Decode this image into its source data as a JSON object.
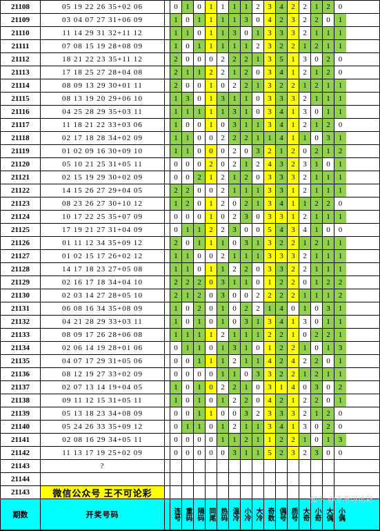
{
  "footer": {
    "period": "期数",
    "draw": "开奖号码",
    "cols": [
      "连号",
      "重码",
      "隔码",
      "同尾",
      "热码",
      "温冷",
      "小冷",
      "大冷",
      "奇数",
      "偶号",
      "质号",
      "大奇",
      "小奇",
      "大偶",
      "小偶"
    ]
  },
  "wx": "微信公众号 王不可论彩",
  "watermark": "知乎 @王不可论彩",
  "colors": {
    "y": "#ffff00",
    "g": "#92d050",
    "c": "#00ffff"
  },
  "rows": [
    {
      "id": "21108",
      "n": "05 19 22 26 35+02 06",
      "v": [
        "0",
        "1",
        "0",
        "1",
        "1",
        "1",
        "1",
        "2",
        "3",
        "4",
        "2",
        "2",
        "1",
        "2",
        "0"
      ],
      "c": [
        "",
        "g",
        "",
        "y",
        "",
        "g",
        "g",
        "",
        "y",
        "g",
        "y",
        "",
        "g",
        "g",
        ""
      ]
    },
    {
      "id": "21109",
      "n": "03 04 07 27 31+06 09",
      "v": [
        "1",
        "0",
        "1",
        "1",
        "1",
        "1",
        "3",
        "0",
        "4",
        "2",
        "3",
        "2",
        "2",
        "0",
        "1"
      ],
      "c": [
        "g",
        "",
        "g",
        "y",
        "g",
        "g",
        "g",
        "",
        "y",
        "g",
        "y",
        "",
        "g",
        "",
        "g"
      ]
    },
    {
      "id": "21110",
      "n": "11 14 29 31 32+11 12",
      "v": [
        "1",
        "1",
        "0",
        "1",
        "1",
        "3",
        "0",
        "1",
        "3",
        "3",
        "3",
        "2",
        "1",
        "1",
        "1"
      ],
      "c": [
        "g",
        "g",
        "",
        "y",
        "g",
        "g",
        "",
        "g",
        "y",
        "g",
        "y",
        "",
        "g",
        "g",
        "g"
      ]
    },
    {
      "id": "21111",
      "n": "07 08 15 19 28+08 09",
      "v": [
        "1",
        "0",
        "1",
        "1",
        "1",
        "1",
        "1",
        "2",
        "3",
        "2",
        "2",
        "1",
        "2",
        "1",
        "1"
      ],
      "c": [
        "g",
        "",
        "g",
        "y",
        "g",
        "g",
        "g",
        "",
        "y",
        "g",
        "y",
        "g",
        "g",
        "g",
        "g"
      ]
    },
    {
      "id": "21112",
      "n": "18 21 22 23 35+11 12",
      "v": [
        "2",
        "0",
        "0",
        "0",
        "2",
        "2",
        "2",
        "1",
        "3",
        "5",
        "1",
        "3",
        "0",
        "2",
        "0"
      ],
      "c": [
        "g",
        "",
        "",
        "",
        "",
        "g",
        "g",
        "g",
        "y",
        "g",
        "y",
        "",
        "",
        "g",
        ""
      ]
    },
    {
      "id": "21113",
      "n": "17 18 25 27 28+04 08",
      "v": [
        "2",
        "1",
        "1",
        "2",
        "2",
        "1",
        "2",
        "0",
        "3",
        "4",
        "1",
        "2",
        "1",
        "2",
        "0"
      ],
      "c": [
        "g",
        "g",
        "g",
        "y",
        "",
        "g",
        "g",
        "",
        "y",
        "g",
        "y",
        "",
        "g",
        "g",
        ""
      ]
    },
    {
      "id": "21114",
      "n": "08 09 13 29 30+01 11",
      "v": [
        "2",
        "0",
        "0",
        "1",
        "0",
        "2",
        "2",
        "1",
        "3",
        "2",
        "2",
        "1",
        "2",
        "1",
        "1"
      ],
      "c": [
        "g",
        "",
        "",
        "y",
        "",
        "",
        "g",
        "g",
        "y",
        "g",
        "y",
        "g",
        "g",
        "g",
        "g"
      ]
    },
    {
      "id": "21115",
      "n": "08 13 19 20 29+06 10",
      "v": [
        "1",
        "3",
        "0",
        "1",
        "3",
        "1",
        "1",
        "0",
        "3",
        "3",
        "3",
        "2",
        "1",
        "1",
        "1"
      ],
      "c": [
        "g",
        "g",
        "",
        "y",
        "g",
        "g",
        "g",
        "",
        "y",
        "g",
        "y",
        "",
        "g",
        "g",
        "g"
      ]
    },
    {
      "id": "21116",
      "n": "04 25 28 29 35+03 11",
      "v": [
        "1",
        "1",
        "1",
        "1",
        "1",
        "3",
        "1",
        "0",
        "3",
        "4",
        "1",
        "3",
        "0",
        "1",
        "1"
      ],
      "c": [
        "g",
        "g",
        "g",
        "y",
        "g",
        "g",
        "g",
        "",
        "y",
        "g",
        "y",
        "",
        "",
        "g",
        "g"
      ]
    },
    {
      "id": "21117",
      "n": "11 18 21 22 33+03 06",
      "v": [
        "1",
        "0",
        "0",
        "1",
        "0",
        "3",
        "1",
        "1",
        "3",
        "4",
        "1",
        "2",
        "1",
        "2",
        "0"
      ],
      "c": [
        "g",
        "",
        "",
        "y",
        "",
        "g",
        "g",
        "g",
        "y",
        "g",
        "y",
        "",
        "g",
        "g",
        ""
      ]
    },
    {
      "id": "21118",
      "n": "02 17 18 28 34+02 09",
      "v": [
        "1",
        "1",
        "0",
        "0",
        "2",
        "2",
        "2",
        "1",
        "1",
        "4",
        "1",
        "1",
        "0",
        "3",
        "1"
      ],
      "c": [
        "g",
        "g",
        "",
        "",
        "",
        "g",
        "g",
        "g",
        "g",
        "g",
        "y",
        "g",
        "",
        "g",
        "g"
      ]
    },
    {
      "id": "21119",
      "n": "01 02 09 16 30+09 10",
      "v": [
        "1",
        "1",
        "0",
        "0",
        "0",
        "2",
        "0",
        "3",
        "2",
        "1",
        "2",
        "0",
        "2",
        "1",
        "2"
      ],
      "c": [
        "g",
        "g",
        "",
        "y",
        "",
        "",
        "",
        "g",
        "y",
        "g",
        "y",
        "",
        "g",
        "g",
        "g"
      ]
    },
    {
      "id": "21120",
      "n": "05 10 21 25 31+05 11",
      "v": [
        "0",
        "0",
        "0",
        "2",
        "0",
        "2",
        "1",
        "2",
        "4",
        "3",
        "2",
        "3",
        "1",
        "0",
        "1"
      ],
      "c": [
        "",
        "",
        "",
        "y",
        "",
        "",
        "g",
        "",
        "y",
        "g",
        "y",
        "",
        "g",
        "",
        "g"
      ]
    },
    {
      "id": "21121",
      "n": "02 15 19 29 30+02 09",
      "v": [
        "0",
        "0",
        "2",
        "1",
        "2",
        "1",
        "2",
        "0",
        "3",
        "3",
        "3",
        "2",
        "1",
        "1",
        "1"
      ],
      "c": [
        "",
        "",
        "g",
        "y",
        "",
        "g",
        "g",
        "",
        "y",
        "g",
        "y",
        "",
        "g",
        "g",
        "g"
      ]
    },
    {
      "id": "21122",
      "n": "14 15 26 27 29+04 05",
      "v": [
        "2",
        "2",
        "0",
        "0",
        "2",
        "1",
        "1",
        "1",
        "3",
        "3",
        "1",
        "2",
        "1",
        "1",
        "1"
      ],
      "c": [
        "g",
        "g",
        "",
        "",
        "",
        "g",
        "g",
        "g",
        "y",
        "g",
        "y",
        "",
        "g",
        "g",
        "g"
      ]
    },
    {
      "id": "21123",
      "n": "08 23 26 27 30+10 12",
      "v": [
        "1",
        "2",
        "0",
        "1",
        "2",
        "0",
        "2",
        "1",
        "3",
        "4",
        "1",
        "1",
        "2",
        "2",
        "0"
      ],
      "c": [
        "g",
        "g",
        "",
        "y",
        "",
        "",
        "g",
        "g",
        "y",
        "g",
        "y",
        "g",
        "g",
        "g",
        ""
      ]
    },
    {
      "id": "21124",
      "n": "10 17 22 25 35+07 09",
      "v": [
        "0",
        "0",
        "0",
        "1",
        "0",
        "2",
        "3",
        "0",
        "3",
        "3",
        "1",
        "2",
        "1",
        "1",
        "1"
      ],
      "c": [
        "",
        "",
        "",
        "y",
        "",
        "",
        "g",
        "",
        "y",
        "y",
        "y",
        "",
        "g",
        "g",
        "g"
      ]
    },
    {
      "id": "21125",
      "n": "17 19 21 27 31+04 09",
      "v": [
        "0",
        "1",
        "1",
        "2",
        "2",
        "3",
        "0",
        "0",
        "5",
        "4",
        "3",
        "4",
        "1",
        "0",
        "0"
      ],
      "c": [
        "",
        "g",
        "g",
        "y",
        "",
        "g",
        "",
        "",
        "y",
        "g",
        "y",
        "",
        "g",
        "",
        ""
      ]
    },
    {
      "id": "21126",
      "n": "01 11 12 34 35+09 12",
      "v": [
        "2",
        "0",
        "1",
        "1",
        "1",
        "0",
        "3",
        "1",
        "3",
        "2",
        "2",
        "1",
        "2",
        "1",
        "1"
      ],
      "c": [
        "g",
        "",
        "g",
        "y",
        "g",
        "",
        "g",
        "g",
        "y",
        "g",
        "y",
        "g",
        "g",
        "g",
        "g"
      ]
    },
    {
      "id": "21127",
      "n": "01 02 15 17 26+02 12",
      "v": [
        "1",
        "1",
        "0",
        "0",
        "2",
        "1",
        "1",
        "1",
        "3",
        "3",
        "3",
        "2",
        "1",
        "1",
        "1"
      ],
      "c": [
        "g",
        "g",
        "",
        "",
        "",
        "g",
        "g",
        "g",
        "y",
        "y",
        "y",
        "",
        "g",
        "g",
        "g"
      ]
    },
    {
      "id": "21128",
      "n": "14 17 18 23 27+05 08",
      "v": [
        "1",
        "1",
        "0",
        "1",
        "1",
        "2",
        "2",
        "0",
        "3",
        "3",
        "2",
        "2",
        "1",
        "1",
        "1"
      ],
      "c": [
        "g",
        "g",
        "",
        "y",
        "g",
        "",
        "g",
        "",
        "y",
        "g",
        "y",
        "",
        "g",
        "g",
        "g"
      ]
    },
    {
      "id": "21129",
      "n": "02 16 17 18 34+04 10",
      "v": [
        "2",
        "2",
        "2",
        "0",
        "3",
        "1",
        "1",
        "0",
        "1",
        "2",
        "2",
        "0",
        "1",
        "2",
        "2"
      ],
      "c": [
        "g",
        "g",
        "g",
        "y",
        "g",
        "g",
        "g",
        "",
        "y",
        "g",
        "y",
        "",
        "g",
        "g",
        "g"
      ]
    },
    {
      "id": "21130",
      "n": "02 03 14 27 28+05 10",
      "v": [
        "2",
        "1",
        "2",
        "0",
        "3",
        "0",
        "0",
        "2",
        "2",
        "2",
        "2",
        "1",
        "1",
        "1",
        "2"
      ],
      "c": [
        "g",
        "g",
        "g",
        "",
        "g",
        "",
        "",
        "",
        "y",
        "g",
        "y",
        "g",
        "g",
        "g",
        "g"
      ]
    },
    {
      "id": "21131",
      "n": "06 08 16 34 35+08 09",
      "v": [
        "1",
        "0",
        "2",
        "0",
        "1",
        "0",
        "2",
        "2",
        "1",
        "4",
        "0",
        "1",
        "0",
        "3",
        "1"
      ],
      "c": [
        "g",
        "",
        "g",
        "",
        "g",
        "",
        "g",
        "",
        "g",
        "g",
        "",
        "g",
        "",
        "g",
        "g"
      ]
    },
    {
      "id": "21132",
      "n": "04 21 28 29 33+03 11",
      "v": [
        "1",
        "0",
        "1",
        "0",
        "1",
        "0",
        "3",
        "1",
        "3",
        "4",
        "1",
        "3",
        "0",
        "1",
        "1"
      ],
      "c": [
        "g",
        "",
        "g",
        "",
        "g",
        "",
        "g",
        "g",
        "y",
        "g",
        "y",
        "",
        "",
        "g",
        "g"
      ]
    },
    {
      "id": "21133",
      "n": "08 09 17 26 28+06 08",
      "v": [
        "1",
        "1",
        "1",
        "1",
        "2",
        "1",
        "1",
        "1",
        "2",
        "2",
        "1",
        "0",
        "2",
        "2",
        "1"
      ],
      "c": [
        "g",
        "g",
        "g",
        "y",
        "",
        "g",
        "g",
        "g",
        "y",
        "g",
        "y",
        "",
        "g",
        "g",
        "g"
      ]
    },
    {
      "id": "21134",
      "n": "02 06 14 19 28+01 06",
      "v": [
        "0",
        "1",
        "1",
        "0",
        "1",
        "3",
        "1",
        "0",
        "1",
        "2",
        "2",
        "1",
        "0",
        "1",
        "3"
      ],
      "c": [
        "",
        "g",
        "g",
        "",
        "g",
        "g",
        "g",
        "",
        "y",
        "g",
        "y",
        "g",
        "",
        "g",
        "g"
      ]
    },
    {
      "id": "21135",
      "n": "04 07 17 29 31+05 06",
      "v": [
        "0",
        "0",
        "1",
        "1",
        "1",
        "2",
        "1",
        "1",
        "4",
        "2",
        "4",
        "2",
        "2",
        "0",
        "1"
      ],
      "c": [
        "",
        "",
        "g",
        "y",
        "g",
        "",
        "g",
        "g",
        "y",
        "g",
        "y",
        "",
        "g",
        "",
        "g"
      ]
    },
    {
      "id": "21136",
      "n": "08 12 19 27 33+02 09",
      "v": [
        "0",
        "0",
        "0",
        "0",
        "1",
        "1",
        "0",
        "3",
        "3",
        "2",
        "2",
        "1",
        "2",
        "1",
        "1"
      ],
      "c": [
        "",
        "",
        "",
        "",
        "g",
        "g",
        "",
        "g",
        "y",
        "g",
        "y",
        "g",
        "g",
        "g",
        "g"
      ]
    },
    {
      "id": "21137",
      "n": "02 07 13 14 19+04 05",
      "v": [
        "1",
        "0",
        "1",
        "0",
        "2",
        "2",
        "1",
        "0",
        "3",
        "1",
        "4",
        "0",
        "3",
        "0",
        "2"
      ],
      "c": [
        "g",
        "",
        "g",
        "y",
        "",
        "g",
        "g",
        "",
        "y",
        "y",
        "y",
        "",
        "g",
        "",
        "g"
      ]
    },
    {
      "id": "21138",
      "n": "09 11 12 15 31+05 11",
      "v": [
        "1",
        "0",
        "1",
        "0",
        "1",
        "2",
        "2",
        "0",
        "4",
        "2",
        "1",
        "2",
        "2",
        "0",
        "1"
      ],
      "c": [
        "g",
        "",
        "g",
        "",
        "g",
        "",
        "g",
        "",
        "y",
        "g",
        "y",
        "",
        "g",
        "",
        "g"
      ]
    },
    {
      "id": "21139",
      "n": "05 13 18 23 34+08 09",
      "v": [
        "0",
        "0",
        "1",
        "1",
        "0",
        "0",
        "3",
        "2",
        "3",
        "3",
        "3",
        "2",
        "1",
        "2",
        "0"
      ],
      "c": [
        "",
        "",
        "g",
        "y",
        "",
        "",
        "g",
        "",
        "y",
        "g",
        "y",
        "",
        "g",
        "g",
        ""
      ]
    },
    {
      "id": "21140",
      "n": "05 24 26 33 35+09 12",
      "v": [
        "0",
        "1",
        "1",
        "0",
        "1",
        "2",
        "1",
        "1",
        "3",
        "4",
        "1",
        "3",
        "0",
        "2",
        "0"
      ],
      "c": [
        "",
        "g",
        "g",
        "",
        "g",
        "",
        "g",
        "g",
        "y",
        "g",
        "y",
        "",
        "",
        "g",
        ""
      ]
    },
    {
      "id": "21141",
      "n": "02 08 16 29 34+05 11",
      "v": [
        "0",
        "0",
        "0",
        "0",
        "1",
        "1",
        "2",
        "1",
        "1",
        "2",
        "2",
        "1",
        "0",
        "1",
        "3"
      ],
      "c": [
        "",
        "",
        "",
        "",
        "g",
        "g",
        "g",
        "g",
        "y",
        "g",
        "y",
        "g",
        "",
        "g",
        "g"
      ]
    },
    {
      "id": "21142",
      "n": "11 13 17 19 25+02 09",
      "v": [
        "0",
        "0",
        "0",
        "0",
        "0",
        "3",
        "1",
        "1",
        "5",
        "2",
        "3",
        "2",
        "3",
        "0",
        "0"
      ],
      "c": [
        "",
        "",
        "",
        "",
        "",
        "g",
        "g",
        "g",
        "y",
        "g",
        "y",
        "",
        "g",
        "",
        ""
      ]
    },
    {
      "id": "21143",
      "n": "?",
      "v": [
        "",
        "",
        "",
        "",
        "",
        "",
        "",
        "",
        "",
        "",
        "",
        "",
        "",
        "",
        ""
      ],
      "c": [
        "",
        "",
        "",
        "",
        "",
        "",
        "",
        "",
        "",
        "",
        "",
        "",
        "",
        "",
        ""
      ]
    },
    {
      "id": "21144",
      "n": "",
      "v": [
        "",
        "",
        "",
        "",
        "",
        "",
        "",
        "",
        "",
        "",
        "",
        "",
        "",
        "",
        ""
      ],
      "c": [
        "",
        "",
        "",
        "",
        "",
        "",
        "",
        "",
        "",
        "",
        "",
        "",
        "",
        "",
        ""
      ]
    }
  ]
}
